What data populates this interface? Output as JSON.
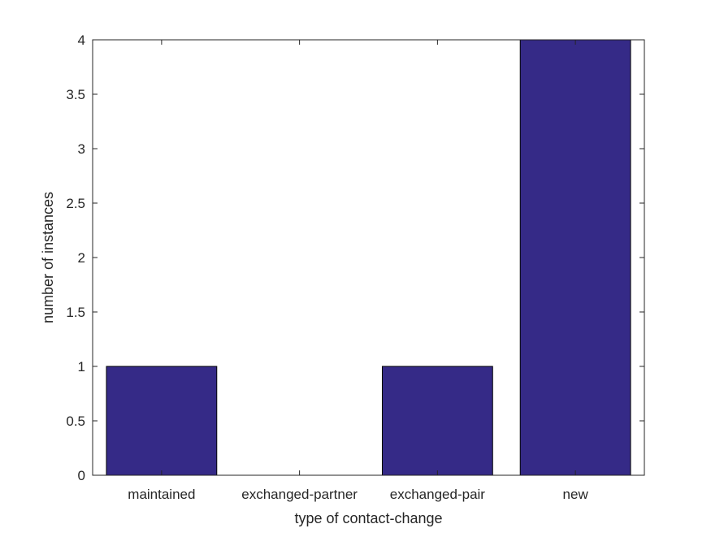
{
  "chart_data": {
    "type": "bar",
    "categories": [
      "maintained",
      "exchanged-partner",
      "exchanged-pair",
      "new"
    ],
    "values": [
      1,
      0,
      1,
      4
    ],
    "title": "",
    "xlabel": "type of contact-change",
    "ylabel": "number of instances",
    "ylim": [
      0,
      4
    ],
    "yticks": [
      "0",
      "0.5",
      "1",
      "1.5",
      "2",
      "2.5",
      "3",
      "3.5",
      "4"
    ],
    "grid": false,
    "bar_color": "#352a87"
  }
}
